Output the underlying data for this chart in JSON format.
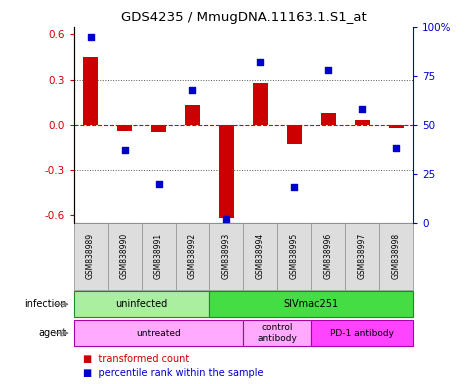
{
  "title": "GDS4235 / MmugDNA.11163.1.S1_at",
  "samples": [
    "GSM838989",
    "GSM838990",
    "GSM838991",
    "GSM838992",
    "GSM838993",
    "GSM838994",
    "GSM838995",
    "GSM838996",
    "GSM838997",
    "GSM838998"
  ],
  "transformed_count": [
    0.45,
    -0.04,
    -0.05,
    0.13,
    -0.62,
    0.28,
    -0.13,
    0.08,
    0.03,
    -0.02
  ],
  "percentile_rank": [
    95,
    37,
    20,
    68,
    2,
    82,
    18,
    78,
    58,
    38
  ],
  "ylim": [
    -0.65,
    0.65
  ],
  "yticks_left": [
    -0.6,
    -0.3,
    0.0,
    0.3,
    0.6
  ],
  "yticks_right": [
    0,
    25,
    50,
    75,
    100
  ],
  "hlines_dotted": [
    -0.3,
    0.3
  ],
  "hline_dashed": 0.0,
  "infection_groups": [
    {
      "label": "uninfected",
      "span": [
        0,
        4
      ],
      "color": "#AAEEA0"
    },
    {
      "label": "SIVmac251",
      "span": [
        4,
        10
      ],
      "color": "#44DD44"
    }
  ],
  "agent_groups": [
    {
      "label": "untreated",
      "span": [
        0,
        5
      ],
      "color": "#FFAAFF"
    },
    {
      "label": "control\nantibody",
      "span": [
        5,
        7
      ],
      "color": "#FFAAFF"
    },
    {
      "label": "PD-1 antibody",
      "span": [
        7,
        10
      ],
      "color": "#FF44FF"
    }
  ],
  "bar_color": "#CC0000",
  "dot_color": "#0000CC",
  "zero_line_color": "#CC0000",
  "hline_color": "#555555",
  "sample_bg": "#DDDDDD",
  "sample_border": "#999999"
}
